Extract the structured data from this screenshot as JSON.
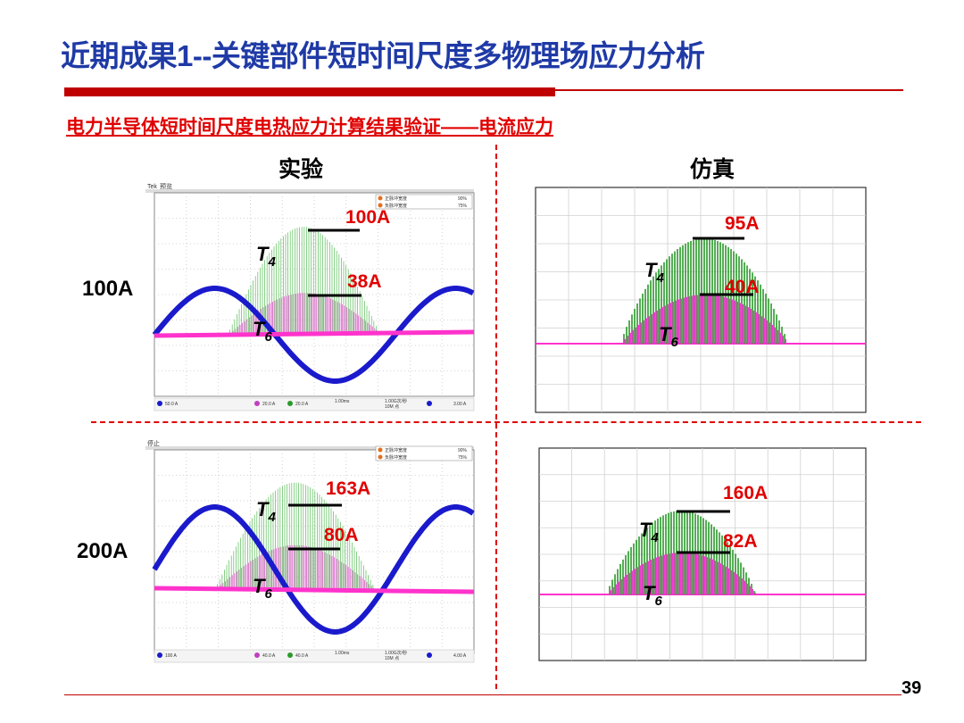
{
  "header": {
    "title": "近期成果1--关键部件短时间尺度多物理场应力分析",
    "subtitle": "电力半导体短时间尺度电热应力计算结果验证——电流应力"
  },
  "columns": {
    "experiment": "实验",
    "simulation": "仿真"
  },
  "rows": [
    {
      "label": "100A",
      "experiment": {
        "t4": "100A",
        "t6": "38A"
      },
      "simulation": {
        "t4": "95A",
        "t6": "40A"
      }
    },
    {
      "label": "200A",
      "experiment": {
        "t4": "163A",
        "t6": "80A"
      },
      "simulation": {
        "t4": "160A",
        "t6": "82A"
      }
    }
  ],
  "scope": {
    "brand": "Tek",
    "status_100": "预览",
    "status_200": "停止",
    "ch1_100": "50.0 A",
    "ch3_100": "20.0 A",
    "ch4_100": "20.0 A",
    "time_100": "1.00ms",
    "rate_100": "1.00G次/秒",
    "rec_100": "10M 点",
    "trig_100": "3.00 A",
    "ch1_200": "100 A",
    "ch3_200": "40.0 A",
    "ch4_200": "40.0 A",
    "time_200": "1.00ms",
    "rate_200": "1.00G次/秒",
    "rec_200": "10M 点",
    "trig_200": "4.00 A",
    "meas1": "正脉冲宽度",
    "meas2": "负脉冲宽度",
    "meas1_val": "90%",
    "meas2_val": "75%"
  },
  "labels": {
    "t4_main": "T",
    "t4_sub": "4",
    "t6_main": "T",
    "t6_sub": "6"
  },
  "colors": {
    "title": "#1f3aa6",
    "accent": "#e00000",
    "t4": "#2a9a2a",
    "t6": "#ff33cc",
    "grid_current": "#1a1acc"
  },
  "page_number": "39"
}
